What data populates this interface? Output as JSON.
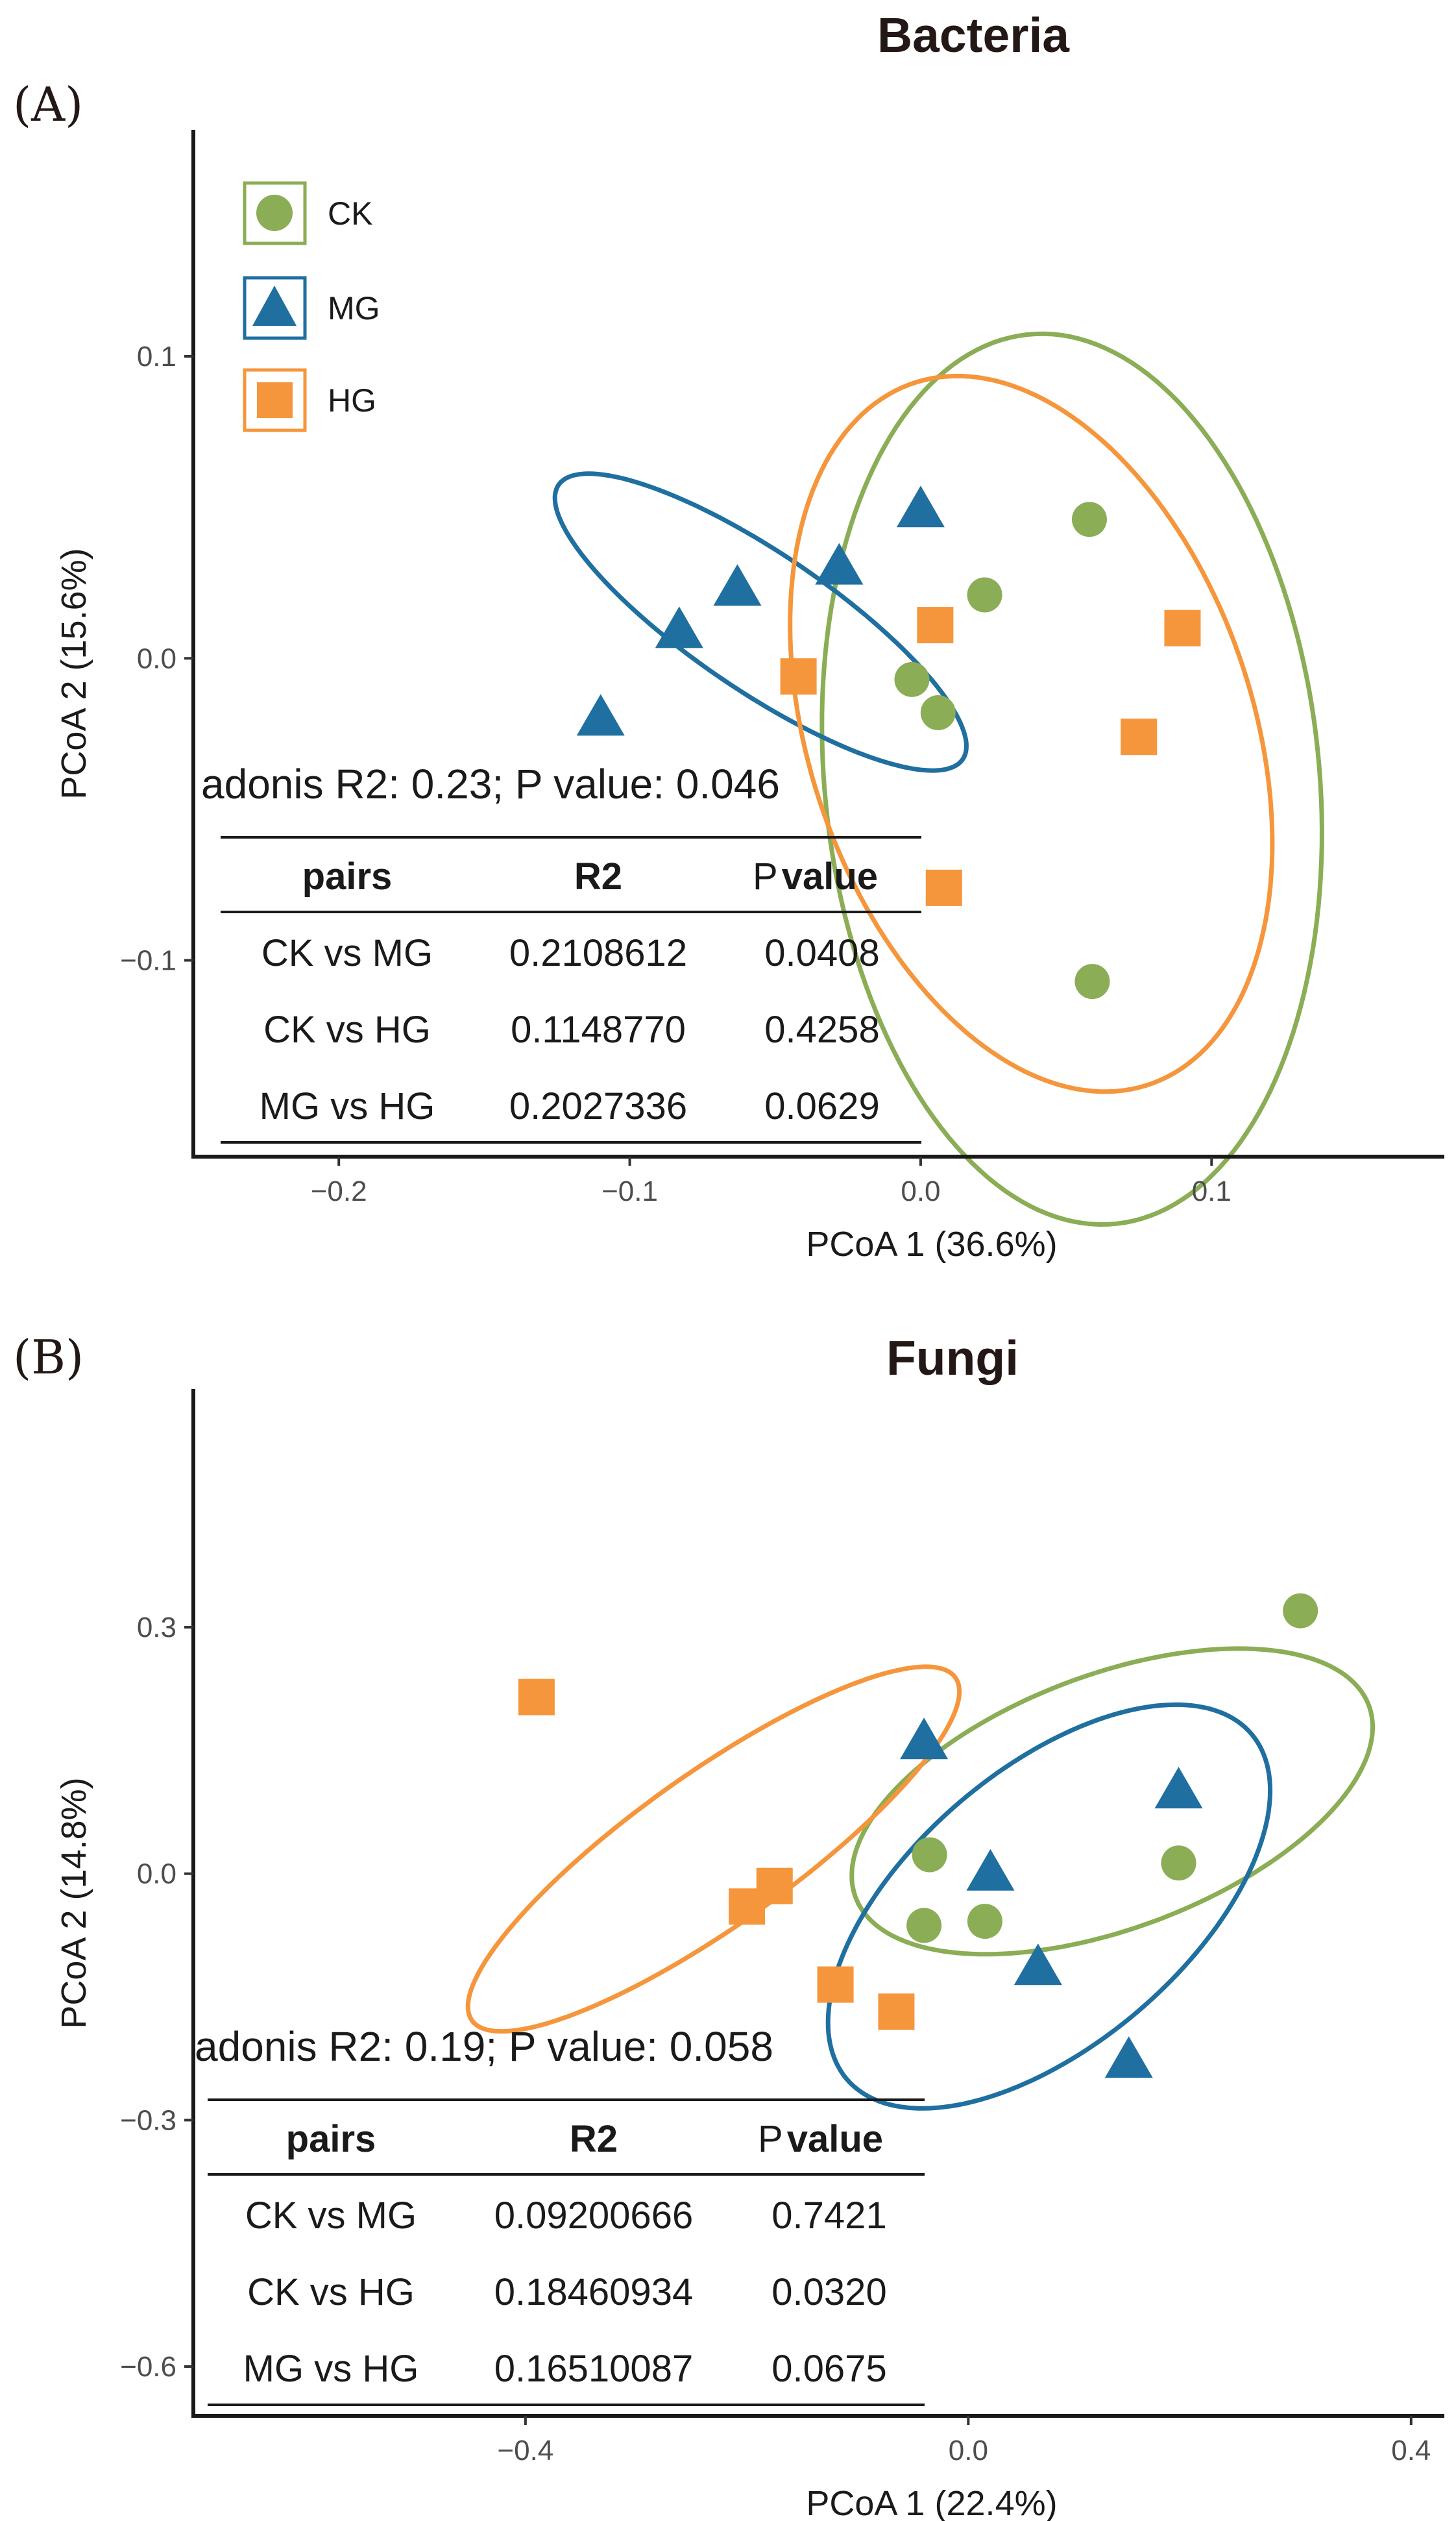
{
  "colors": {
    "CK": "#8aad55",
    "MG": "#1f6fa0",
    "HG": "#f5963c"
  },
  "legend": [
    {
      "key": "CK",
      "label": "CK",
      "shape": "circle-icon"
    },
    {
      "key": "MG",
      "label": "MG",
      "shape": "triangle-icon"
    },
    {
      "key": "HG",
      "label": "HG",
      "shape": "square-icon"
    }
  ],
  "panels": [
    {
      "panel_label": "(A)",
      "adonis": "adonis R2: 0.23;   P value: 0.046",
      "table": {
        "headers": [
          "pairs",
          "R2",
          "P",
          "value"
        ],
        "rows": [
          [
            "CK vs MG",
            "0.2108612",
            "0.0408"
          ],
          [
            "CK vs HG",
            "0.1148770",
            "0.4258"
          ],
          [
            "MG vs HG",
            "0.2027336",
            "0.0629"
          ]
        ]
      }
    },
    {
      "panel_label": "(B)",
      "adonis": "adonis R2: 0.19;   P value: 0.058",
      "table": {
        "headers": [
          "pairs",
          "R2",
          "P",
          "value"
        ],
        "rows": [
          [
            "CK vs MG",
            "0.09200666",
            "0.7421"
          ],
          [
            "CK vs HG",
            "0.18460934",
            "0.0320"
          ],
          [
            "MG vs HG",
            "0.16510087",
            "0.0675"
          ]
        ]
      }
    }
  ],
  "chart_data": [
    {
      "type": "scatter",
      "title": "Bacteria",
      "xlabel": "PCoA 1 (36.6%)",
      "ylabel": "PCoA 2 (15.6%)",
      "xlim": [
        -0.25,
        0.18
      ],
      "ylim": [
        -0.165,
        0.175
      ],
      "xticks": [
        -0.2,
        -0.1,
        0.0,
        0.1
      ],
      "xtick_labels": [
        "−0.2",
        "−0.1",
        "0.0",
        "0.1"
      ],
      "yticks": [
        -0.1,
        0.0,
        0.1
      ],
      "ytick_labels": [
        "−0.1",
        "0.0",
        "0.1"
      ],
      "series": [
        {
          "name": "CK",
          "points": [
            [
              0.058,
              0.046
            ],
            [
              0.022,
              0.021
            ],
            [
              -0.003,
              -0.007
            ],
            [
              0.006,
              -0.018
            ],
            [
              0.059,
              -0.107
            ]
          ]
        },
        {
          "name": "MG",
          "points": [
            [
              0.0,
              0.049
            ],
            [
              -0.028,
              0.03
            ],
            [
              -0.063,
              0.023
            ],
            [
              -0.083,
              0.009
            ],
            [
              -0.11,
              -0.02
            ]
          ]
        },
        {
          "name": "HG",
          "points": [
            [
              0.005,
              0.011
            ],
            [
              0.09,
              0.01
            ],
            [
              -0.042,
              -0.006
            ],
            [
              0.075,
              -0.026
            ],
            [
              0.008,
              -0.076
            ]
          ]
        }
      ],
      "ellipses": [
        {
          "name": "CK",
          "center": [
            0.052,
            -0.04
          ],
          "radii": [
            0.148,
            0.085
          ],
          "rotation_deg": -84
        },
        {
          "name": "MG",
          "center": [
            -0.055,
            0.012
          ],
          "radii": [
            0.083,
            0.023
          ],
          "rotation_deg": -33
        },
        {
          "name": "HG",
          "center": [
            0.038,
            -0.025
          ],
          "radii": [
            0.123,
            0.076
          ],
          "rotation_deg": -70
        }
      ]
    },
    {
      "type": "scatter",
      "title": "Fungi",
      "xlabel": "PCoA 1 (22.4%)",
      "ylabel": "PCoA 2 (14.8%)",
      "xlim": [
        -0.7,
        0.43
      ],
      "ylim": [
        -0.66,
        0.59
      ],
      "xticks": [
        -0.4,
        0.0,
        0.4
      ],
      "xtick_labels": [
        "−0.4",
        "0.0",
        "0.4"
      ],
      "yticks": [
        -0.6,
        -0.3,
        0.0,
        0.3
      ],
      "ytick_labels": [
        "−0.6",
        "−0.3",
        "0.0",
        "0.3"
      ],
      "series": [
        {
          "name": "CK",
          "points": [
            [
              0.3,
              0.32
            ],
            [
              -0.035,
              0.023
            ],
            [
              0.19,
              0.013
            ],
            [
              -0.04,
              -0.063
            ],
            [
              0.015,
              -0.058
            ]
          ]
        },
        {
          "name": "MG",
          "points": [
            [
              -0.04,
              0.16
            ],
            [
              0.19,
              0.1
            ],
            [
              0.02,
              0.0
            ],
            [
              0.063,
              -0.115
            ],
            [
              0.145,
              -0.228
            ]
          ]
        },
        {
          "name": "HG",
          "points": [
            [
              -0.39,
              0.215
            ],
            [
              -0.175,
              -0.015
            ],
            [
              -0.2,
              -0.04
            ],
            [
              -0.12,
              -0.135
            ],
            [
              -0.065,
              -0.168
            ]
          ]
        }
      ],
      "ellipses": [
        {
          "name": "CK",
          "center": [
            0.13,
            0.088
          ],
          "radii": [
            0.262,
            0.146
          ],
          "rotation_deg": 32
        },
        {
          "name": "MG",
          "center": [
            0.073,
            -0.04
          ],
          "radii": [
            0.283,
            0.142
          ],
          "rotation_deg": 55
        },
        {
          "name": "HG",
          "center": [
            -0.23,
            0.03
          ],
          "radii": [
            0.303,
            0.082
          ],
          "rotation_deg": 45
        }
      ]
    }
  ]
}
